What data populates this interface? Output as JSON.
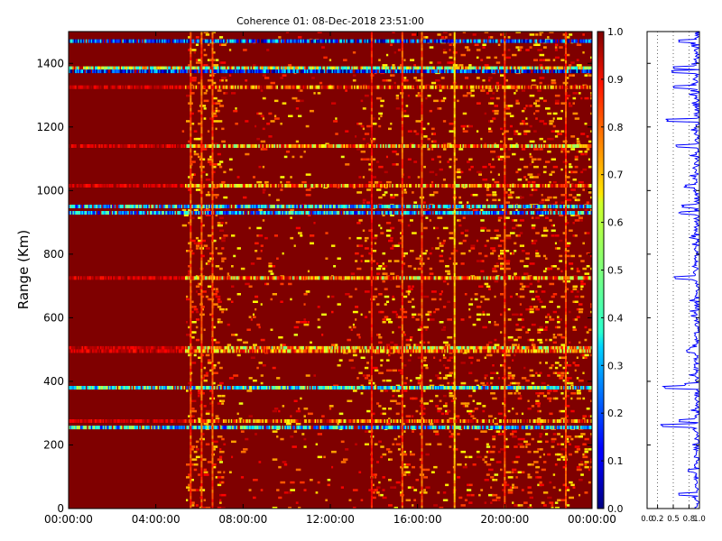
{
  "chart_data": {
    "type": "heatmap",
    "title": "Coherence 01: 08-Dec-2018 23:51:00",
    "xlabel": "",
    "ylabel": "Range (Km)",
    "x_ticks": [
      "00:00:00",
      "04:00:00",
      "08:00:00",
      "12:00:00",
      "16:00:00",
      "20:00:00",
      "00:00:00"
    ],
    "y_ticks": [
      0,
      200,
      400,
      600,
      800,
      1000,
      1200,
      1400
    ],
    "ylim": [
      0,
      1500
    ],
    "x_range_hours": [
      0,
      24
    ],
    "colorbar": {
      "ticks": [
        "0.0",
        "0.1",
        "0.2",
        "0.3",
        "0.4",
        "0.5",
        "0.6",
        "0.7",
        "0.8",
        "0.9",
        "1.0"
      ],
      "range": [
        0,
        1
      ],
      "colormap": "jet"
    },
    "background_value": 1.0,
    "horizontal_bands": [
      {
        "range_km": 1470,
        "coherence": 0.2
      },
      {
        "range_km": 1385,
        "coherence": 0.55
      },
      {
        "range_km": 1375,
        "coherence": 0.15
      },
      {
        "range_km": 1325,
        "coherence": 0.8
      },
      {
        "range_km": 1140,
        "coherence": 0.7
      },
      {
        "range_km": 1015,
        "coherence": 0.75
      },
      {
        "range_km": 950,
        "coherence": 0.35
      },
      {
        "range_km": 930,
        "coherence": 0.3
      },
      {
        "range_km": 725,
        "coherence": 0.7
      },
      {
        "range_km": 505,
        "coherence": 0.65
      },
      {
        "range_km": 495,
        "coherence": 0.75
      },
      {
        "range_km": 380,
        "coherence": 0.4
      },
      {
        "range_km": 275,
        "coherence": 0.8
      },
      {
        "range_km": 255,
        "coherence": 0.35
      }
    ],
    "vertical_bands_hours": [
      {
        "time_hours": 5.6,
        "coherence": 0.8
      },
      {
        "time_hours": 6.1,
        "coherence": 0.8
      },
      {
        "time_hours": 6.6,
        "coherence": 0.8
      },
      {
        "time_hours": 13.9,
        "coherence": 0.85
      },
      {
        "time_hours": 15.3,
        "coherence": 0.8
      },
      {
        "time_hours": 16.2,
        "coherence": 0.8
      },
      {
        "time_hours": 17.7,
        "coherence": 0.7
      },
      {
        "time_hours": 20.0,
        "coherence": 0.8
      },
      {
        "time_hours": 22.8,
        "coherence": 0.8
      }
    ],
    "profile": {
      "x_ticks": [
        "0.0",
        "0.2",
        "0.5",
        "0.8",
        "1.0"
      ],
      "xlim": [
        0,
        1
      ],
      "ylim": [
        0,
        1500
      ],
      "dips": [
        {
          "range_km": 1470,
          "min": 0.6
        },
        {
          "range_km": 1385,
          "min": 0.5
        },
        {
          "range_km": 1375,
          "min": 0.45
        },
        {
          "range_km": 1325,
          "min": 0.5
        },
        {
          "range_km": 1222,
          "min": 0.35
        },
        {
          "range_km": 1140,
          "min": 0.55
        },
        {
          "range_km": 1015,
          "min": 0.7
        },
        {
          "range_km": 950,
          "min": 0.65
        },
        {
          "range_km": 930,
          "min": 0.6
        },
        {
          "range_km": 725,
          "min": 0.5
        },
        {
          "range_km": 505,
          "min": 0.8
        },
        {
          "range_km": 495,
          "min": 0.75
        },
        {
          "range_km": 390,
          "min": 0.7
        },
        {
          "range_km": 380,
          "min": 0.3
        },
        {
          "range_km": 275,
          "min": 0.6
        },
        {
          "range_km": 260,
          "min": 0.25
        },
        {
          "range_km": 120,
          "min": 0.75
        },
        {
          "range_km": 45,
          "min": 0.6
        }
      ]
    }
  }
}
